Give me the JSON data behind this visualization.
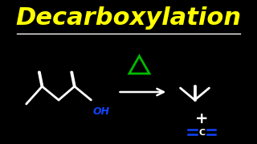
{
  "title": "Decarboxylation",
  "title_color": "#FFFF00",
  "title_fontsize": 22,
  "bg_color": "#000000",
  "line_color": "#FFFFFF",
  "red_color": "#DD2200",
  "blue_color": "#1144FF",
  "green_color": "#00BB00",
  "separator_color": "#FFFFFF",
  "bond_lw": 2.0,
  "o_edge_lw": 1.8
}
